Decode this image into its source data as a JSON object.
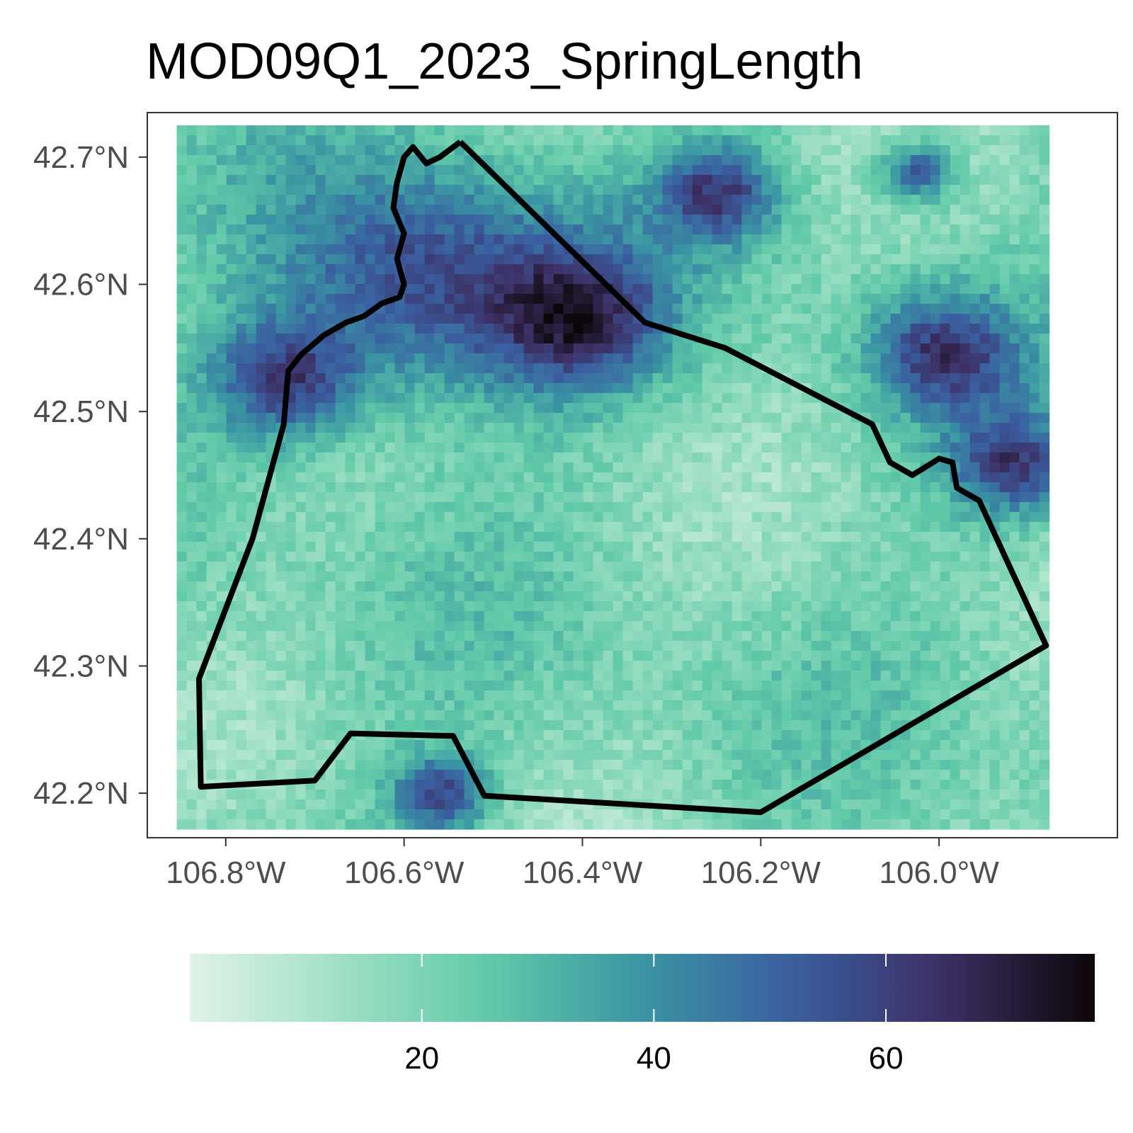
{
  "title": "MOD09Q1_2023_SpringLength",
  "map": {
    "lon_range": [
      -106.888,
      -105.8
    ],
    "lat_range": [
      42.165,
      42.735
    ],
    "lat_ticks": [
      {
        "value": 42.7,
        "label": "42.7°N"
      },
      {
        "value": 42.6,
        "label": "42.6°N"
      },
      {
        "value": 42.5,
        "label": "42.5°N"
      },
      {
        "value": 42.4,
        "label": "42.4°N"
      },
      {
        "value": 42.3,
        "label": "42.3°N"
      },
      {
        "value": 42.2,
        "label": "42.2°N"
      }
    ],
    "lon_ticks": [
      {
        "value": -106.8,
        "label": "106.8°W"
      },
      {
        "value": -106.6,
        "label": "106.6°W"
      },
      {
        "value": -106.4,
        "label": "106.4°W"
      },
      {
        "value": -106.2,
        "label": "106.2°W"
      },
      {
        "value": -106.0,
        "label": "106.0°W"
      }
    ],
    "raster_extent": {
      "lon": [
        -106.855,
        -105.885
      ],
      "lat": [
        42.175,
        42.725
      ]
    },
    "boundary_lonlat": [
      [
        -106.537,
        42.712
      ],
      [
        -106.56,
        42.7
      ],
      [
        -106.575,
        42.695
      ],
      [
        -106.59,
        42.708
      ],
      [
        -106.6,
        42.7
      ],
      [
        -106.608,
        42.68
      ],
      [
        -106.612,
        42.66
      ],
      [
        -106.6,
        42.64
      ],
      [
        -106.608,
        42.62
      ],
      [
        -106.6,
        42.6
      ],
      [
        -106.605,
        42.59
      ],
      [
        -106.625,
        42.585
      ],
      [
        -106.645,
        42.575
      ],
      [
        -106.665,
        42.57
      ],
      [
        -106.69,
        42.56
      ],
      [
        -106.715,
        42.545
      ],
      [
        -106.73,
        42.532
      ],
      [
        -106.735,
        42.49
      ],
      [
        -106.77,
        42.4
      ],
      [
        -106.83,
        42.29
      ],
      [
        -106.828,
        42.205
      ],
      [
        -106.7,
        42.21
      ],
      [
        -106.66,
        42.247
      ],
      [
        -106.545,
        42.245
      ],
      [
        -106.51,
        42.198
      ],
      [
        -106.2,
        42.185
      ],
      [
        -105.88,
        42.316
      ],
      [
        -105.955,
        42.43
      ],
      [
        -105.98,
        42.44
      ],
      [
        -105.985,
        42.46
      ],
      [
        -106.0,
        42.463
      ],
      [
        -106.03,
        42.45
      ],
      [
        -106.055,
        42.46
      ],
      [
        -106.065,
        42.475
      ],
      [
        -106.075,
        42.49
      ],
      [
        -106.24,
        42.55
      ],
      [
        -106.33,
        42.57
      ],
      [
        -106.537,
        42.712
      ]
    ],
    "palette": [
      "#e0f3e6",
      "#9fe0c4",
      "#5fc9a8",
      "#3a95a3",
      "#3a5ea0",
      "#3c2f63",
      "#0d0609"
    ]
  },
  "legend": {
    "range": [
      0,
      78
    ],
    "ticks": [
      {
        "value": 20,
        "label": "20"
      },
      {
        "value": 40,
        "label": "40"
      },
      {
        "value": 60,
        "label": "60"
      }
    ]
  }
}
